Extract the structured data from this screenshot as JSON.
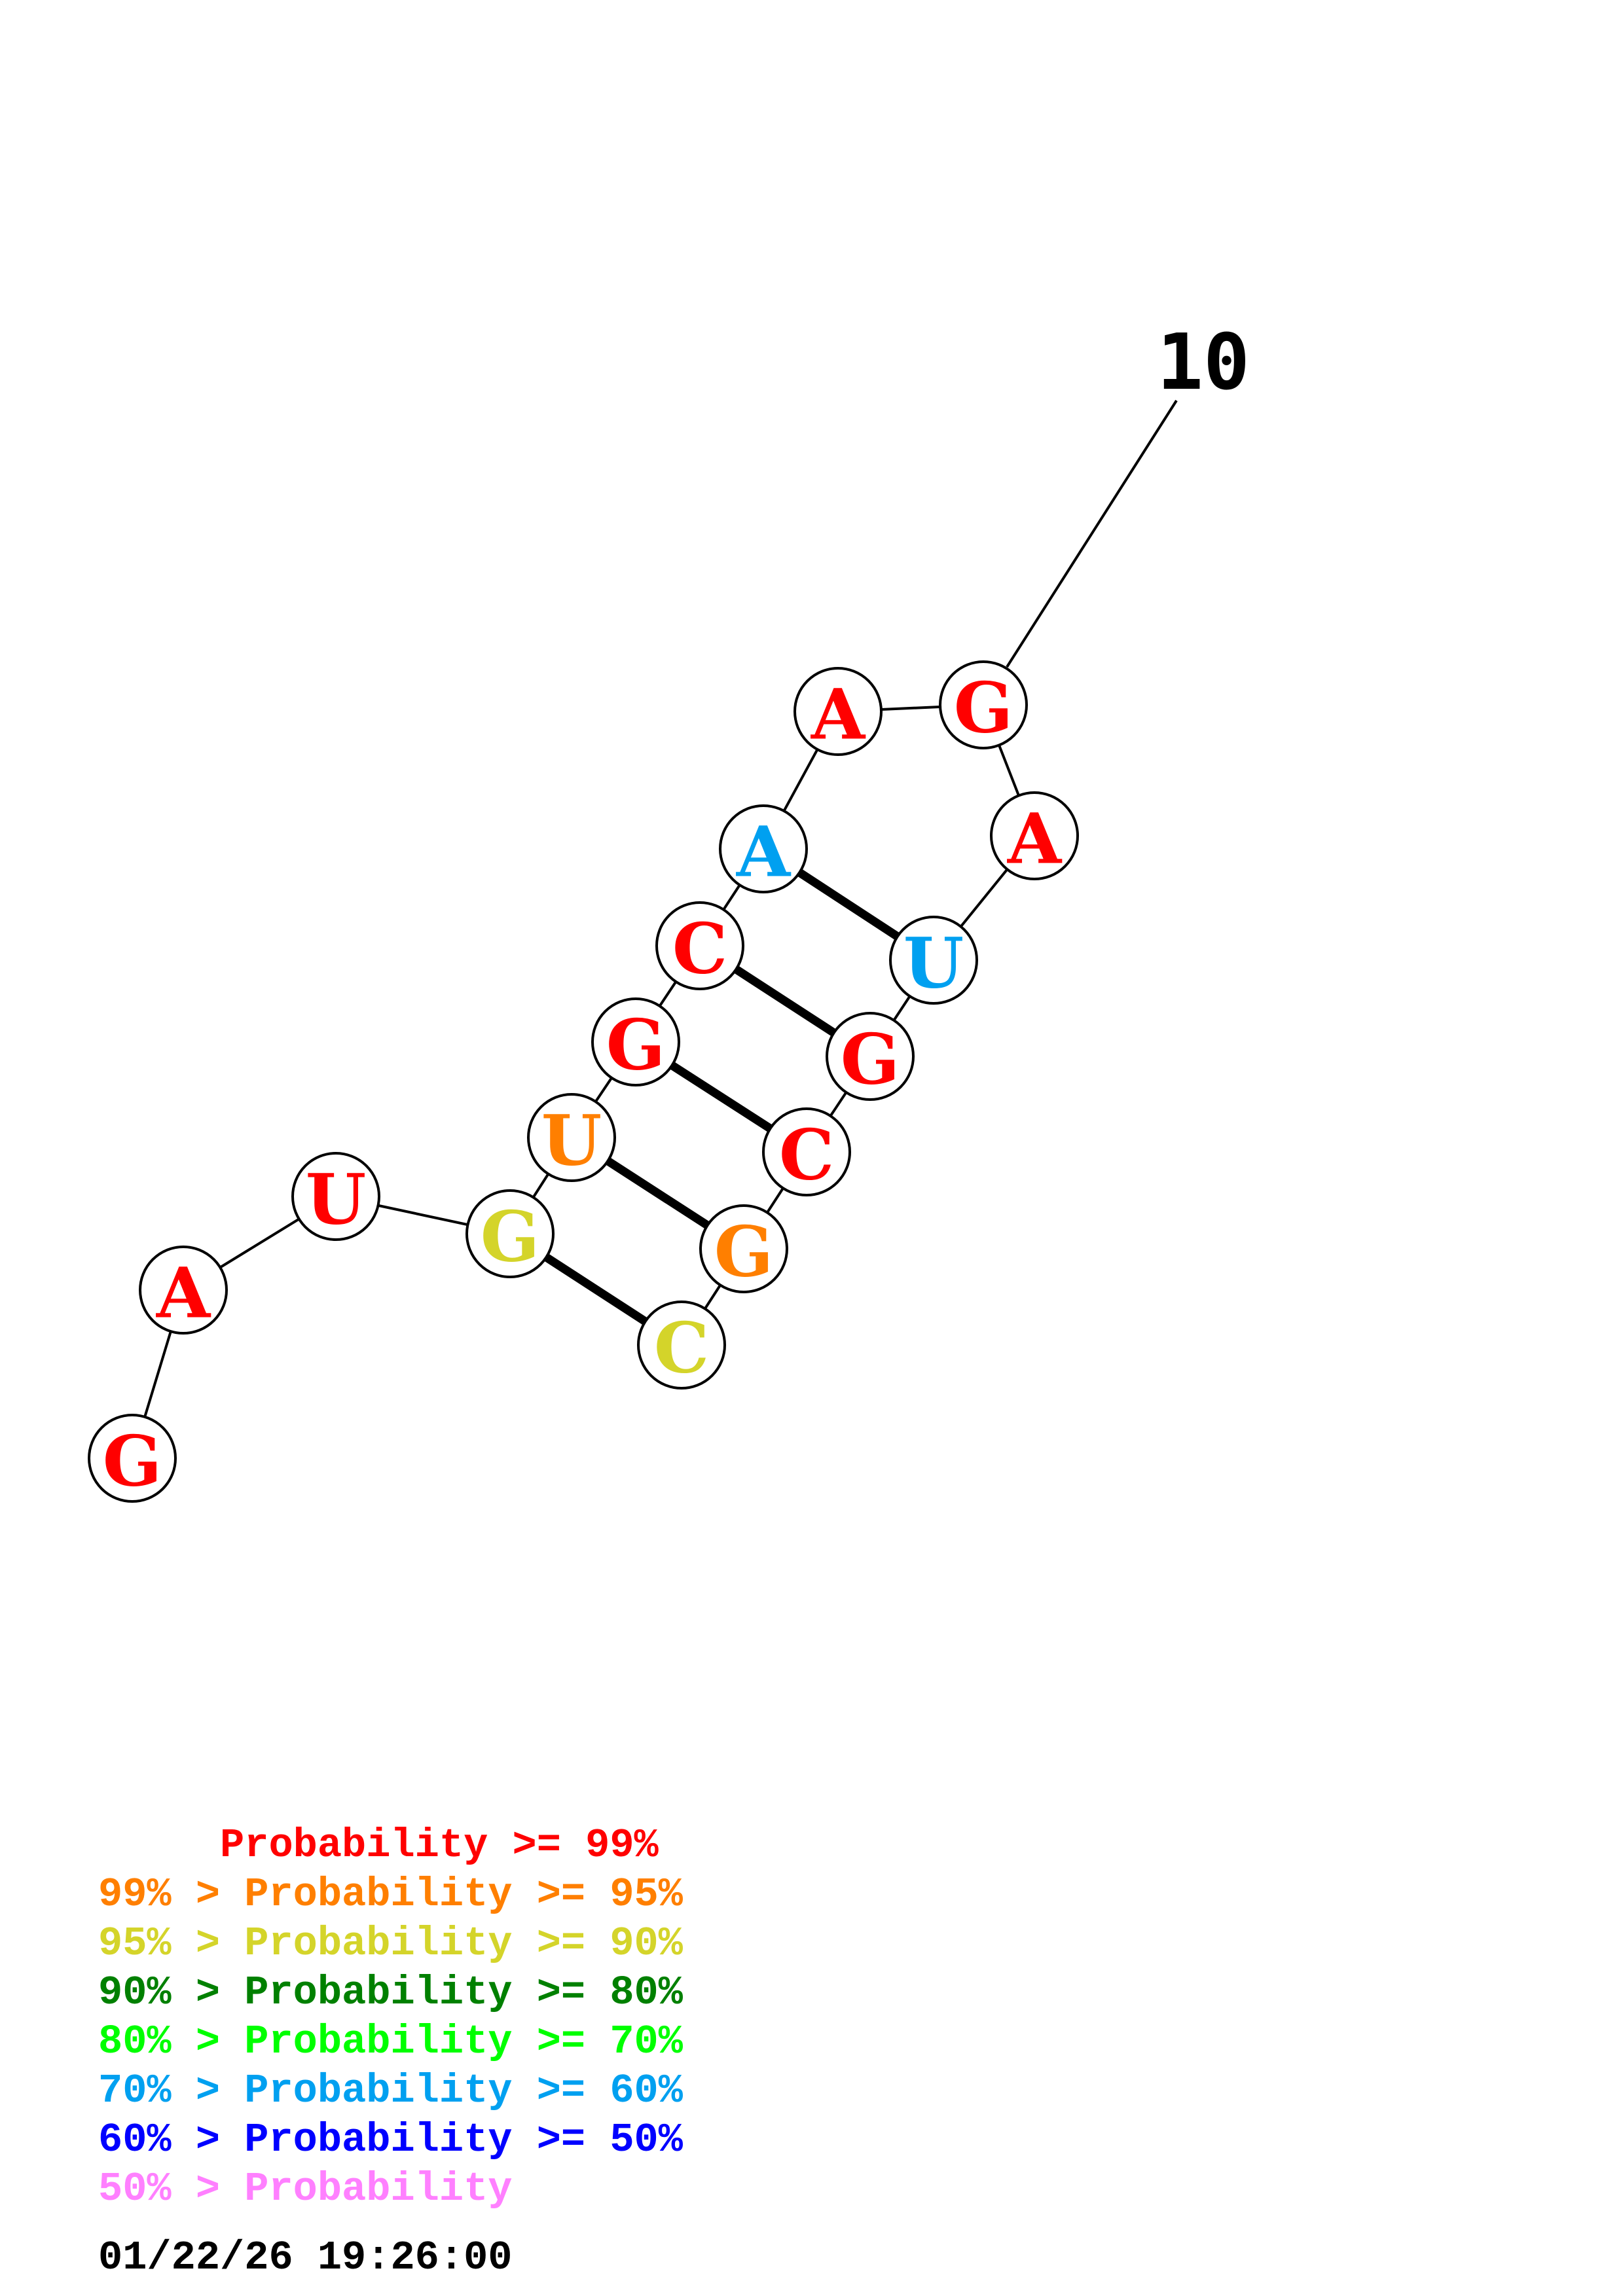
{
  "structure": {
    "nucleotides": [
      {
        "index": 1,
        "base": "G",
        "color": "#ff0000"
      },
      {
        "index": 2,
        "base": "A",
        "color": "#ff0000"
      },
      {
        "index": 3,
        "base": "U",
        "color": "#ff0000"
      },
      {
        "index": 4,
        "base": "G",
        "color": "#d4d42a"
      },
      {
        "index": 5,
        "base": "U",
        "color": "#ff7f00"
      },
      {
        "index": 6,
        "base": "G",
        "color": "#ff0000"
      },
      {
        "index": 7,
        "base": "C",
        "color": "#ff0000"
      },
      {
        "index": 8,
        "base": "A",
        "color": "#00a0f0"
      },
      {
        "index": 9,
        "base": "A",
        "color": "#ff0000"
      },
      {
        "index": 10,
        "base": "G",
        "color": "#ff0000"
      },
      {
        "index": 11,
        "base": "A",
        "color": "#ff0000"
      },
      {
        "index": 12,
        "base": "U",
        "color": "#00a0f0"
      },
      {
        "index": 13,
        "base": "G",
        "color": "#ff0000"
      },
      {
        "index": 14,
        "base": "C",
        "color": "#ff0000"
      },
      {
        "index": 15,
        "base": "G",
        "color": "#ff7f00"
      },
      {
        "index": 16,
        "base": "C",
        "color": "#d4d42a"
      }
    ],
    "base_pairs": [
      [
        4,
        16
      ],
      [
        5,
        15
      ],
      [
        6,
        14
      ],
      [
        7,
        13
      ],
      [
        8,
        12
      ]
    ],
    "tick_label": "10"
  },
  "legend": [
    {
      "text": "     Probability >= 99%",
      "color": "#ff0000"
    },
    {
      "text": "99% > Probability >= 95%",
      "color": "#ff7f00"
    },
    {
      "text": "95% > Probability >= 90%",
      "color": "#d4d42a"
    },
    {
      "text": "90% > Probability >= 80%",
      "color": "#008000"
    },
    {
      "text": "80% > Probability >= 70%",
      "color": "#00ff00"
    },
    {
      "text": "70% > Probability >= 60%",
      "color": "#00a0f0"
    },
    {
      "text": "60% > Probability >= 50%",
      "color": "#0000ff"
    },
    {
      "text": "50% > Probability",
      "color": "#ff80ff"
    }
  ],
  "timestamp": "01/22/26 19:26:00"
}
